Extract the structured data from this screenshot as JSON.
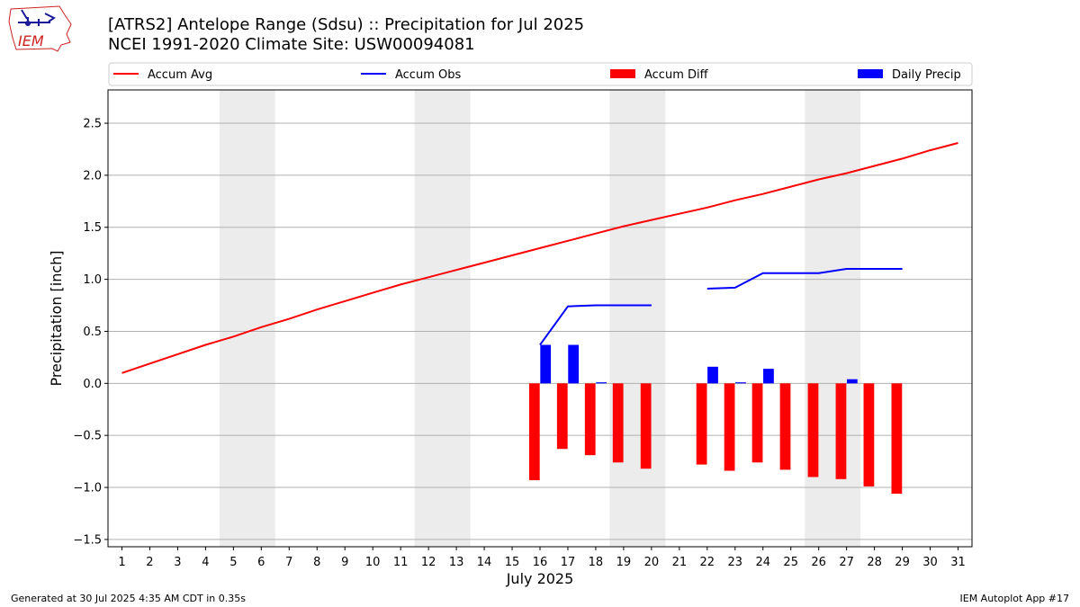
{
  "logo_text": "IEM",
  "title_line1": "[ATRS2] Antelope Range (Sdsu) :: Precipitation for Jul 2025",
  "title_line2": "NCEI 1991-2020 Climate Site: USW00094081",
  "footer_left": "Generated at 30 Jul 2025 4:35 AM CDT in 0.35s",
  "footer_right": "IEM Autoplot App #17",
  "chart_data": {
    "type": "bar",
    "xlabel": "July 2025",
    "ylabel": "Precipitation [inch]",
    "x": [
      1,
      2,
      3,
      4,
      5,
      6,
      7,
      8,
      9,
      10,
      11,
      12,
      13,
      14,
      15,
      16,
      17,
      18,
      19,
      20,
      21,
      22,
      23,
      24,
      25,
      26,
      27,
      28,
      29,
      30,
      31
    ],
    "ylim": [
      -1.57,
      2.82
    ],
    "yticks": [
      -1.5,
      -1.0,
      -0.5,
      0.0,
      0.5,
      1.0,
      1.5,
      2.0,
      2.5
    ],
    "ytick_labels": [
      "−1.5",
      "−1.0",
      "−0.5",
      "0.0",
      "0.5",
      "1.0",
      "1.5",
      "2.0",
      "2.5"
    ],
    "grid": "horizontal",
    "legend_position": "top",
    "weekend_shading": [
      [
        5,
        6
      ],
      [
        12,
        13
      ],
      [
        19,
        20
      ],
      [
        26,
        27
      ]
    ],
    "series": [
      {
        "name": "Accum Avg",
        "kind": "line",
        "color": "#ff0000",
        "x": [
          1,
          2,
          3,
          4,
          5,
          6,
          7,
          8,
          9,
          10,
          11,
          12,
          13,
          14,
          15,
          16,
          17,
          18,
          19,
          20,
          21,
          22,
          23,
          24,
          25,
          26,
          27,
          28,
          29,
          30,
          31
        ],
        "values": [
          0.1,
          0.19,
          0.28,
          0.37,
          0.45,
          0.54,
          0.62,
          0.71,
          0.79,
          0.87,
          0.95,
          1.02,
          1.09,
          1.16,
          1.23,
          1.3,
          1.37,
          1.44,
          1.51,
          1.57,
          1.63,
          1.69,
          1.76,
          1.82,
          1.89,
          1.96,
          2.02,
          2.09,
          2.16,
          2.24,
          2.31
        ]
      },
      {
        "name": "Accum Obs",
        "kind": "line",
        "color": "#0000ff",
        "x": [
          16,
          17,
          18,
          19,
          20,
          null,
          22,
          23,
          24,
          25,
          26,
          27,
          28,
          29
        ],
        "values": [
          0.37,
          0.74,
          0.75,
          0.75,
          0.75,
          null,
          0.91,
          0.92,
          1.06,
          1.06,
          1.06,
          1.1,
          1.1,
          1.1
        ]
      },
      {
        "name": "Accum Diff",
        "kind": "bar",
        "color": "#ff0000",
        "offset": -0.2,
        "x": [
          16,
          17,
          18,
          19,
          20,
          22,
          23,
          24,
          25,
          26,
          27,
          28,
          29
        ],
        "values": [
          -0.93,
          -0.63,
          -0.69,
          -0.76,
          -0.82,
          -0.78,
          -0.84,
          -0.76,
          -0.83,
          -0.9,
          -0.92,
          -0.99,
          -1.06
        ]
      },
      {
        "name": "Daily Precip",
        "kind": "bar",
        "color": "#0000ff",
        "offset": 0.2,
        "x": [
          16,
          17,
          18,
          22,
          23,
          24,
          27
        ],
        "values": [
          0.37,
          0.37,
          0.01,
          0.16,
          0.01,
          0.14,
          0.04
        ]
      }
    ]
  }
}
